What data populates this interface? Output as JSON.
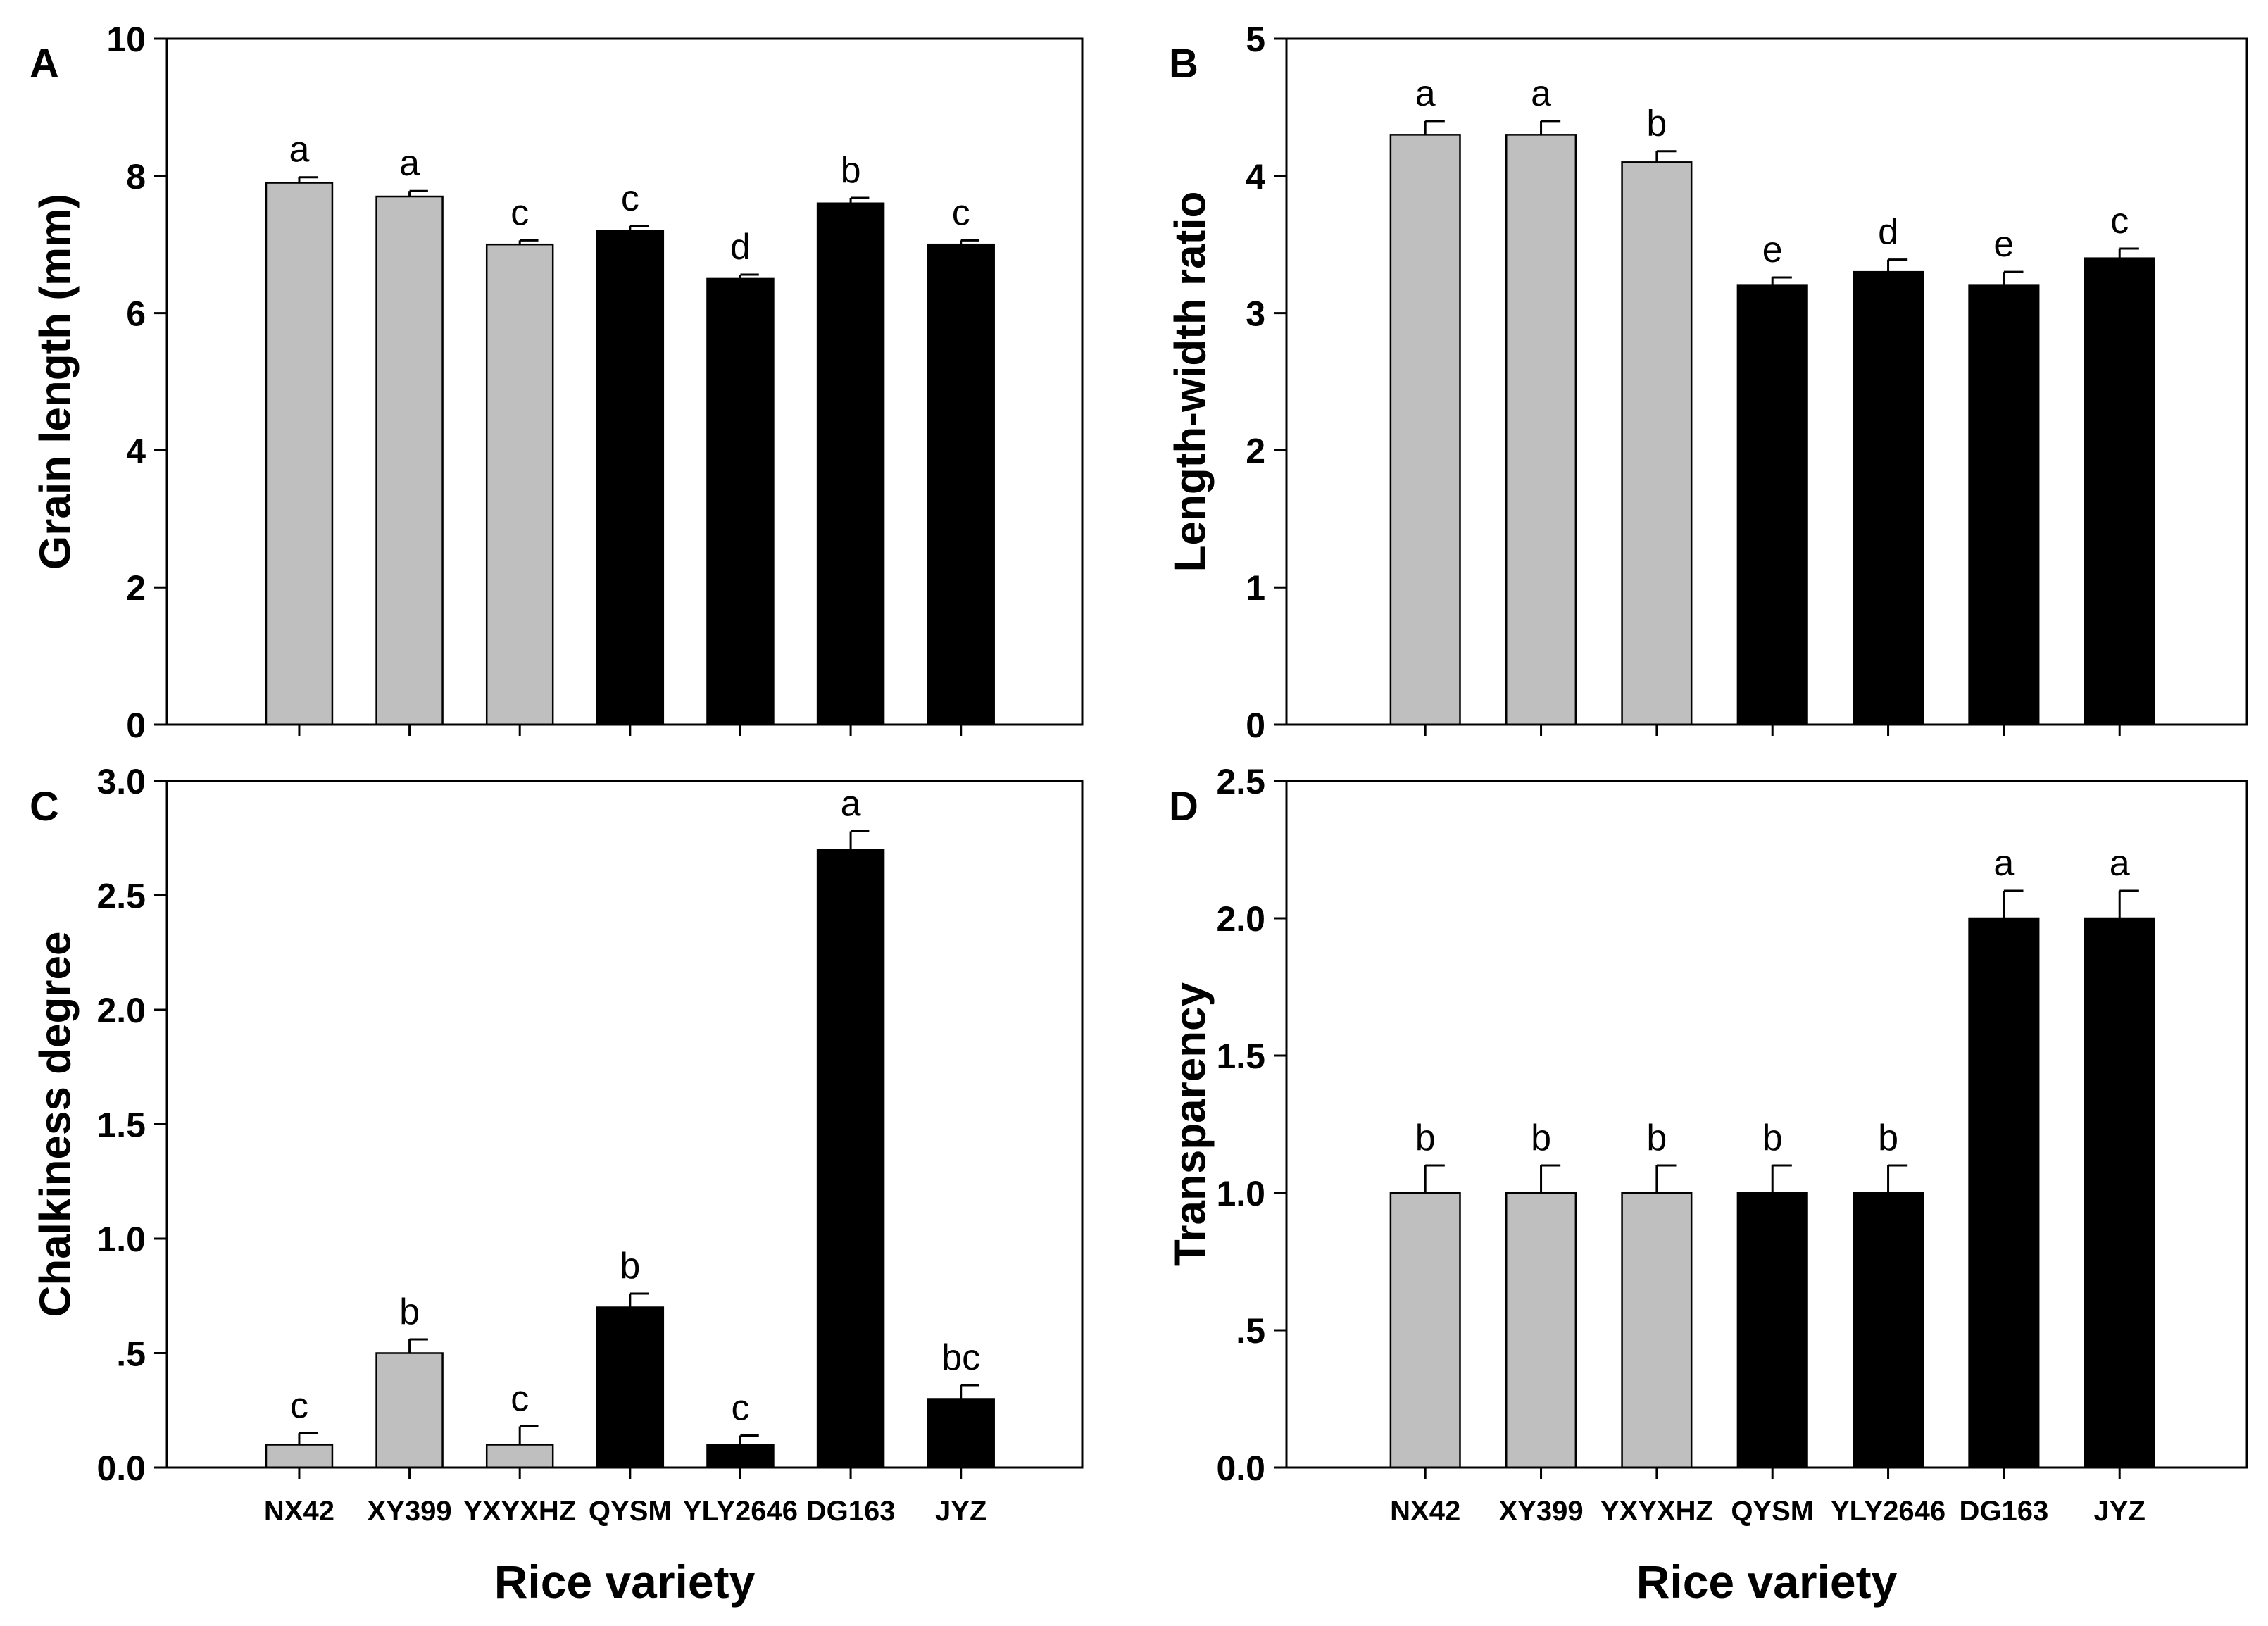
{
  "colors": {
    "light_bar": "#bfbfbf",
    "dark_bar": "#000000",
    "axis": "#000000",
    "background": "#ffffff"
  },
  "chart_data": [
    {
      "panel": "A",
      "type": "bar",
      "ylabel": "Grain length (mm)",
      "xlabel": "",
      "ylim": [
        0,
        10
      ],
      "y_ticks": [
        "0",
        "2",
        "4",
        "6",
        "8",
        "10"
      ],
      "y_tick_values": [
        0,
        2,
        4,
        6,
        8,
        10
      ],
      "categories": [
        "NX42",
        "XY399",
        "YXYXHZ",
        "QYSM",
        "YLY2646",
        "DG163",
        "JYZ"
      ],
      "show_category_labels": false,
      "values": [
        7.9,
        7.7,
        7.0,
        7.2,
        6.5,
        7.6,
        7.0
      ],
      "errors": [
        0.08,
        0.08,
        0.06,
        0.07,
        0.06,
        0.08,
        0.06
      ],
      "significance": [
        "a",
        "a",
        "c",
        "c",
        "d",
        "b",
        "c"
      ],
      "bar_colors": [
        "light",
        "light",
        "light",
        "dark",
        "dark",
        "dark",
        "dark"
      ]
    },
    {
      "panel": "B",
      "type": "bar",
      "ylabel": "Length-width ratio",
      "xlabel": "",
      "ylim": [
        0,
        5
      ],
      "y_ticks": [
        "0",
        "1",
        "2",
        "3",
        "4",
        "5"
      ],
      "y_tick_values": [
        0,
        1,
        2,
        3,
        4,
        5
      ],
      "categories": [
        "NX42",
        "XY399",
        "YXYXHZ",
        "QYSM",
        "YLY2646",
        "DG163",
        "JYZ"
      ],
      "show_category_labels": false,
      "values": [
        4.3,
        4.3,
        4.1,
        3.2,
        3.3,
        3.2,
        3.4
      ],
      "errors": [
        0.1,
        0.1,
        0.08,
        0.06,
        0.09,
        0.1,
        0.07
      ],
      "significance": [
        "a",
        "a",
        "b",
        "e",
        "d",
        "e",
        "c"
      ],
      "bar_colors": [
        "light",
        "light",
        "light",
        "dark",
        "dark",
        "dark",
        "dark"
      ]
    },
    {
      "panel": "C",
      "type": "bar",
      "ylabel": "Chalkiness degree",
      "xlabel": "Rice variety",
      "ylim": [
        0,
        3
      ],
      "y_ticks": [
        "0.0",
        ".5",
        "1.0",
        "1.5",
        "2.0",
        "2.5",
        "3.0"
      ],
      "y_tick_values": [
        0,
        0.5,
        1,
        1.5,
        2,
        2.5,
        3
      ],
      "categories": [
        "NX42",
        "XY399",
        "YXYXHZ",
        "QYSM",
        "YLY2646",
        "DG163",
        "JYZ"
      ],
      "show_category_labels": true,
      "values": [
        0.1,
        0.5,
        0.1,
        0.7,
        0.1,
        2.7,
        0.3
      ],
      "errors": [
        0.05,
        0.06,
        0.08,
        0.06,
        0.04,
        0.08,
        0.06
      ],
      "significance": [
        "c",
        "b",
        "c",
        "b",
        "c",
        "a",
        "bc"
      ],
      "bar_colors": [
        "light",
        "light",
        "light",
        "dark",
        "dark",
        "dark",
        "dark"
      ]
    },
    {
      "panel": "D",
      "type": "bar",
      "ylabel": "Transparency",
      "xlabel": "Rice variety",
      "ylim": [
        0,
        2.5
      ],
      "y_ticks": [
        "0.0",
        ".5",
        "1.0",
        "1.5",
        "2.0",
        "2.5"
      ],
      "y_tick_values": [
        0,
        0.5,
        1,
        1.5,
        2,
        2.5
      ],
      "categories": [
        "NX42",
        "XY399",
        "YXYXHZ",
        "QYSM",
        "YLY2646",
        "DG163",
        "JYZ"
      ],
      "show_category_labels": true,
      "values": [
        1.0,
        1.0,
        1.0,
        1.0,
        1.0,
        2.0,
        2.0
      ],
      "errors": [
        0.1,
        0.1,
        0.1,
        0.1,
        0.1,
        0.1,
        0.1
      ],
      "significance": [
        "b",
        "b",
        "b",
        "b",
        "b",
        "a",
        "a"
      ],
      "bar_colors": [
        "light",
        "light",
        "light",
        "dark",
        "dark",
        "dark",
        "dark"
      ]
    }
  ]
}
